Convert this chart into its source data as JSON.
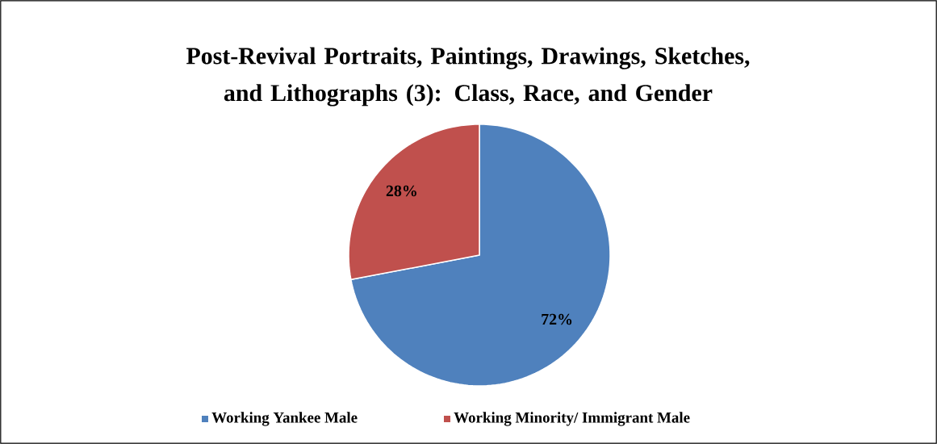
{
  "chart_data": {
    "type": "pie",
    "title": "Post-Revival Portraits, Paintings, Drawings, Sketches, and Lithographs (3): Class, Race, and Gender",
    "categories": [
      "Working Yankee Male",
      "Working Minority/ Immigrant Male"
    ],
    "values": [
      72,
      28
    ],
    "colors": [
      "#4f81bd",
      "#c0504d"
    ],
    "value_labels": [
      "72%",
      "28%"
    ],
    "legend": "bottom"
  }
}
